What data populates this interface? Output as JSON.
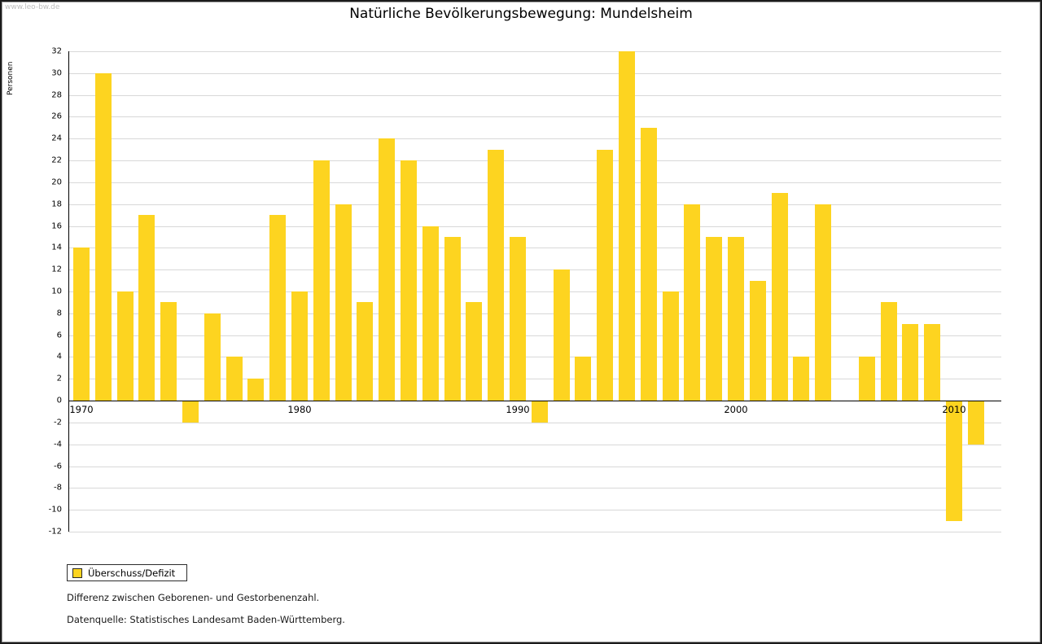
{
  "page": {
    "watermark": "www.leo-bw.de"
  },
  "chart_data": {
    "type": "bar",
    "title": "Natürliche Bevölkerungsbewegung: Mundelsheim",
    "xlabel": "",
    "ylabel": "Personen",
    "ylim": [
      -12,
      32
    ],
    "ytick_step": 2,
    "grid": true,
    "legend_position": "bottom-left",
    "bar_color": "#fdd420",
    "series_name": "Überschuss/Defizit",
    "x": [
      1970,
      1971,
      1972,
      1973,
      1974,
      1975,
      1976,
      1977,
      1978,
      1979,
      1980,
      1981,
      1982,
      1983,
      1984,
      1985,
      1986,
      1987,
      1988,
      1989,
      1990,
      1991,
      1992,
      1993,
      1994,
      1995,
      1996,
      1997,
      1998,
      1999,
      2000,
      2001,
      2002,
      2003,
      2004,
      2005,
      2006,
      2007,
      2008,
      2009,
      2010,
      2011
    ],
    "values": [
      14,
      30,
      10,
      17,
      9,
      -2,
      8,
      4,
      2,
      17,
      10,
      22,
      18,
      9,
      24,
      22,
      16,
      15,
      9,
      23,
      15,
      -2,
      12,
      4,
      23,
      32,
      25,
      10,
      18,
      15,
      15,
      11,
      19,
      4,
      18,
      0,
      4,
      9,
      7,
      7,
      -11,
      -4
    ],
    "xticks": [
      1970,
      1980,
      1990,
      2000,
      2010
    ]
  },
  "legend": {
    "label": "Überschuss/Defizit"
  },
  "footnotes": {
    "line1": "Differenz zwischen Geborenen- und Gestorbenenzahl.",
    "line2": "Datenquelle: Statistisches Landesamt Baden-Württemberg."
  }
}
